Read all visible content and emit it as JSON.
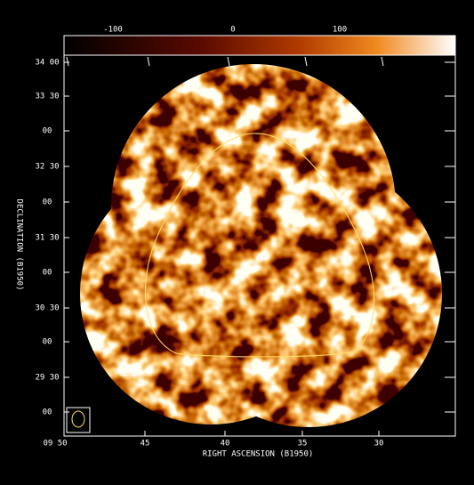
{
  "colorbar": {
    "ticks": [
      "-100",
      "0",
      "100"
    ]
  },
  "axes": {
    "x_label": "RIGHT ASCENSION (B1950)",
    "y_label": "DECLINATION (B1950)",
    "x_ticks": [
      "09 50",
      "45",
      "40",
      "35",
      "30"
    ],
    "y_ticks": [
      "34 00",
      "33 30",
      "00",
      "32 30",
      "00",
      "31 30",
      "00",
      "30 30",
      "00",
      "29 30",
      "00"
    ]
  }
}
